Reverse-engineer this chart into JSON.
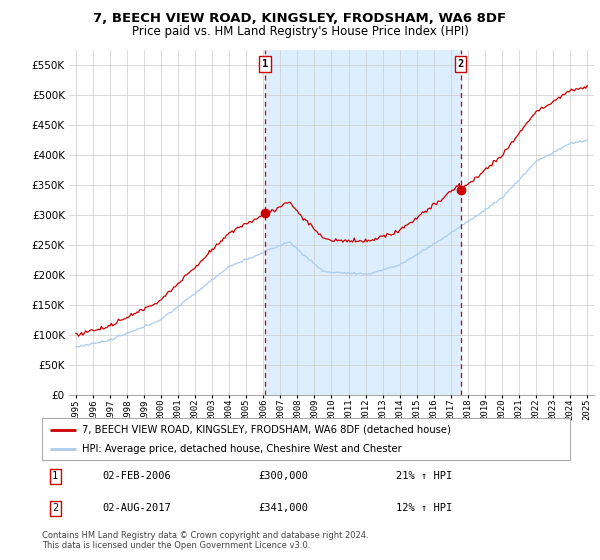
{
  "title": "7, BEECH VIEW ROAD, KINGSLEY, FRODSHAM, WA6 8DF",
  "subtitle": "Price paid vs. HM Land Registry's House Price Index (HPI)",
  "ylim": [
    0,
    575000
  ],
  "yticks": [
    0,
    50000,
    100000,
    150000,
    200000,
    250000,
    300000,
    350000,
    400000,
    450000,
    500000,
    550000
  ],
  "sale1_year": 2006.09,
  "sale1_price": 300000,
  "sale1_label": "1",
  "sale1_date": "02-FEB-2006",
  "sale1_pct": "21% ↑ HPI",
  "sale2_year": 2017.58,
  "sale2_price": 341000,
  "sale2_label": "2",
  "sale2_date": "02-AUG-2017",
  "sale2_pct": "12% ↑ HPI",
  "hpi_color": "#aaccee",
  "price_color": "#cc0000",
  "vline_color": "#cc0000",
  "fill_color": "#ddeeff",
  "legend_label_price": "7, BEECH VIEW ROAD, KINGSLEY, FRODSHAM, WA6 8DF (detached house)",
  "legend_label_hpi": "HPI: Average price, detached house, Cheshire West and Chester",
  "footer": "Contains HM Land Registry data © Crown copyright and database right 2024.\nThis data is licensed under the Open Government Licence v3.0.",
  "background_color": "#ffffff",
  "grid_color": "#cccccc"
}
